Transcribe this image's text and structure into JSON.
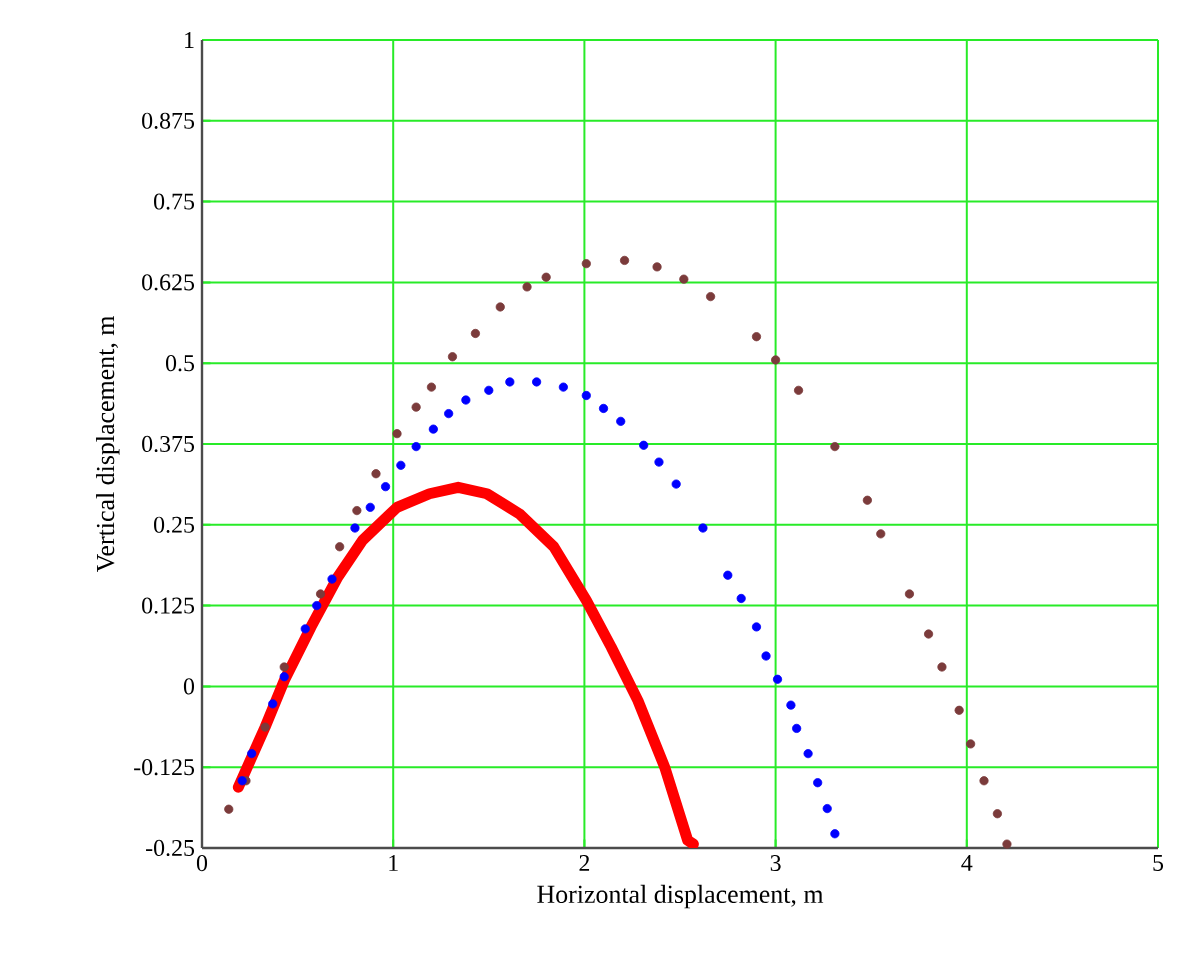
{
  "chart_data": {
    "type": "scatter",
    "xlabel": "Horizontal displacement, m",
    "ylabel": "Vertical displacement, m",
    "xlim": [
      0,
      5
    ],
    "ylim": [
      -0.25,
      1
    ],
    "xticks": [
      0,
      1,
      2,
      3,
      4,
      5
    ],
    "yticks": [
      -0.25,
      -0.125,
      0,
      0.125,
      0.25,
      0.375,
      0.5,
      0.625,
      0.75,
      0.875,
      1
    ],
    "grid": true,
    "series": [
      {
        "type": "scatter",
        "marker": "circle",
        "color": "#7b3b3b",
        "x": [
          0.14,
          0.23,
          0.33,
          0.43,
          0.54,
          0.62,
          0.72,
          0.81,
          0.91,
          1.02,
          1.12,
          1.2,
          1.31,
          1.43,
          1.56,
          1.7,
          1.8,
          2.01,
          2.21,
          2.38,
          2.52,
          2.66,
          2.9,
          3.0,
          3.12,
          3.31,
          3.48,
          3.55,
          3.7,
          3.8,
          3.87,
          3.96,
          4.02,
          4.09,
          4.16,
          4.21
        ],
        "values": [
          -0.19,
          -0.146,
          -0.063,
          0.03,
          null,
          0.143,
          0.216,
          0.272,
          0.329,
          0.391,
          0.432,
          0.463,
          0.51,
          0.546,
          0.587,
          0.618,
          0.633,
          0.654,
          0.659,
          0.649,
          0.63,
          0.603,
          0.541,
          0.505,
          0.458,
          0.371,
          0.288,
          0.236,
          0.143,
          0.081,
          0.03,
          -0.037,
          -0.089,
          -0.146,
          -0.197,
          -0.244
        ]
      },
      {
        "type": "scatter",
        "marker": "circle",
        "color": "#0000ff",
        "x": [
          0.21,
          0.26,
          0.37,
          0.43,
          0.54,
          0.6,
          0.68,
          0.8,
          0.88,
          0.96,
          1.04,
          1.12,
          1.21,
          1.29,
          1.38,
          1.5,
          1.61,
          1.75,
          1.89,
          2.01,
          2.1,
          2.19,
          2.31,
          2.39,
          2.48,
          2.62,
          2.75,
          2.82,
          2.9,
          2.95,
          3.01,
          3.08,
          3.11,
          3.17,
          3.22,
          3.27,
          3.31
        ],
        "values": [
          -0.146,
          -0.104,
          -0.027,
          0.015,
          0.089,
          0.125,
          0.166,
          0.245,
          0.277,
          0.309,
          0.342,
          0.371,
          0.398,
          0.422,
          0.443,
          0.458,
          0.471,
          0.471,
          0.463,
          0.45,
          0.43,
          0.41,
          0.373,
          0.347,
          0.313,
          0.245,
          0.172,
          0.136,
          0.092,
          0.047,
          0.011,
          -0.029,
          -0.065,
          -0.104,
          -0.149,
          -0.189,
          -0.228
        ]
      },
      {
        "type": "line",
        "marker": "none",
        "color": "#ff0000",
        "x": [
          0.19,
          0.33,
          0.43,
          0.57,
          0.71,
          0.84,
          1.02,
          1.19,
          1.34,
          1.49,
          1.66,
          1.84,
          2.01,
          2.14,
          2.28,
          2.42,
          2.54,
          2.57
        ],
        "values": [
          -0.156,
          -0.063,
          0.009,
          0.092,
          0.169,
          0.226,
          0.277,
          0.298,
          0.308,
          0.298,
          0.267,
          0.216,
          0.133,
          0.061,
          -0.022,
          -0.125,
          -0.238,
          -0.244
        ]
      }
    ]
  }
}
